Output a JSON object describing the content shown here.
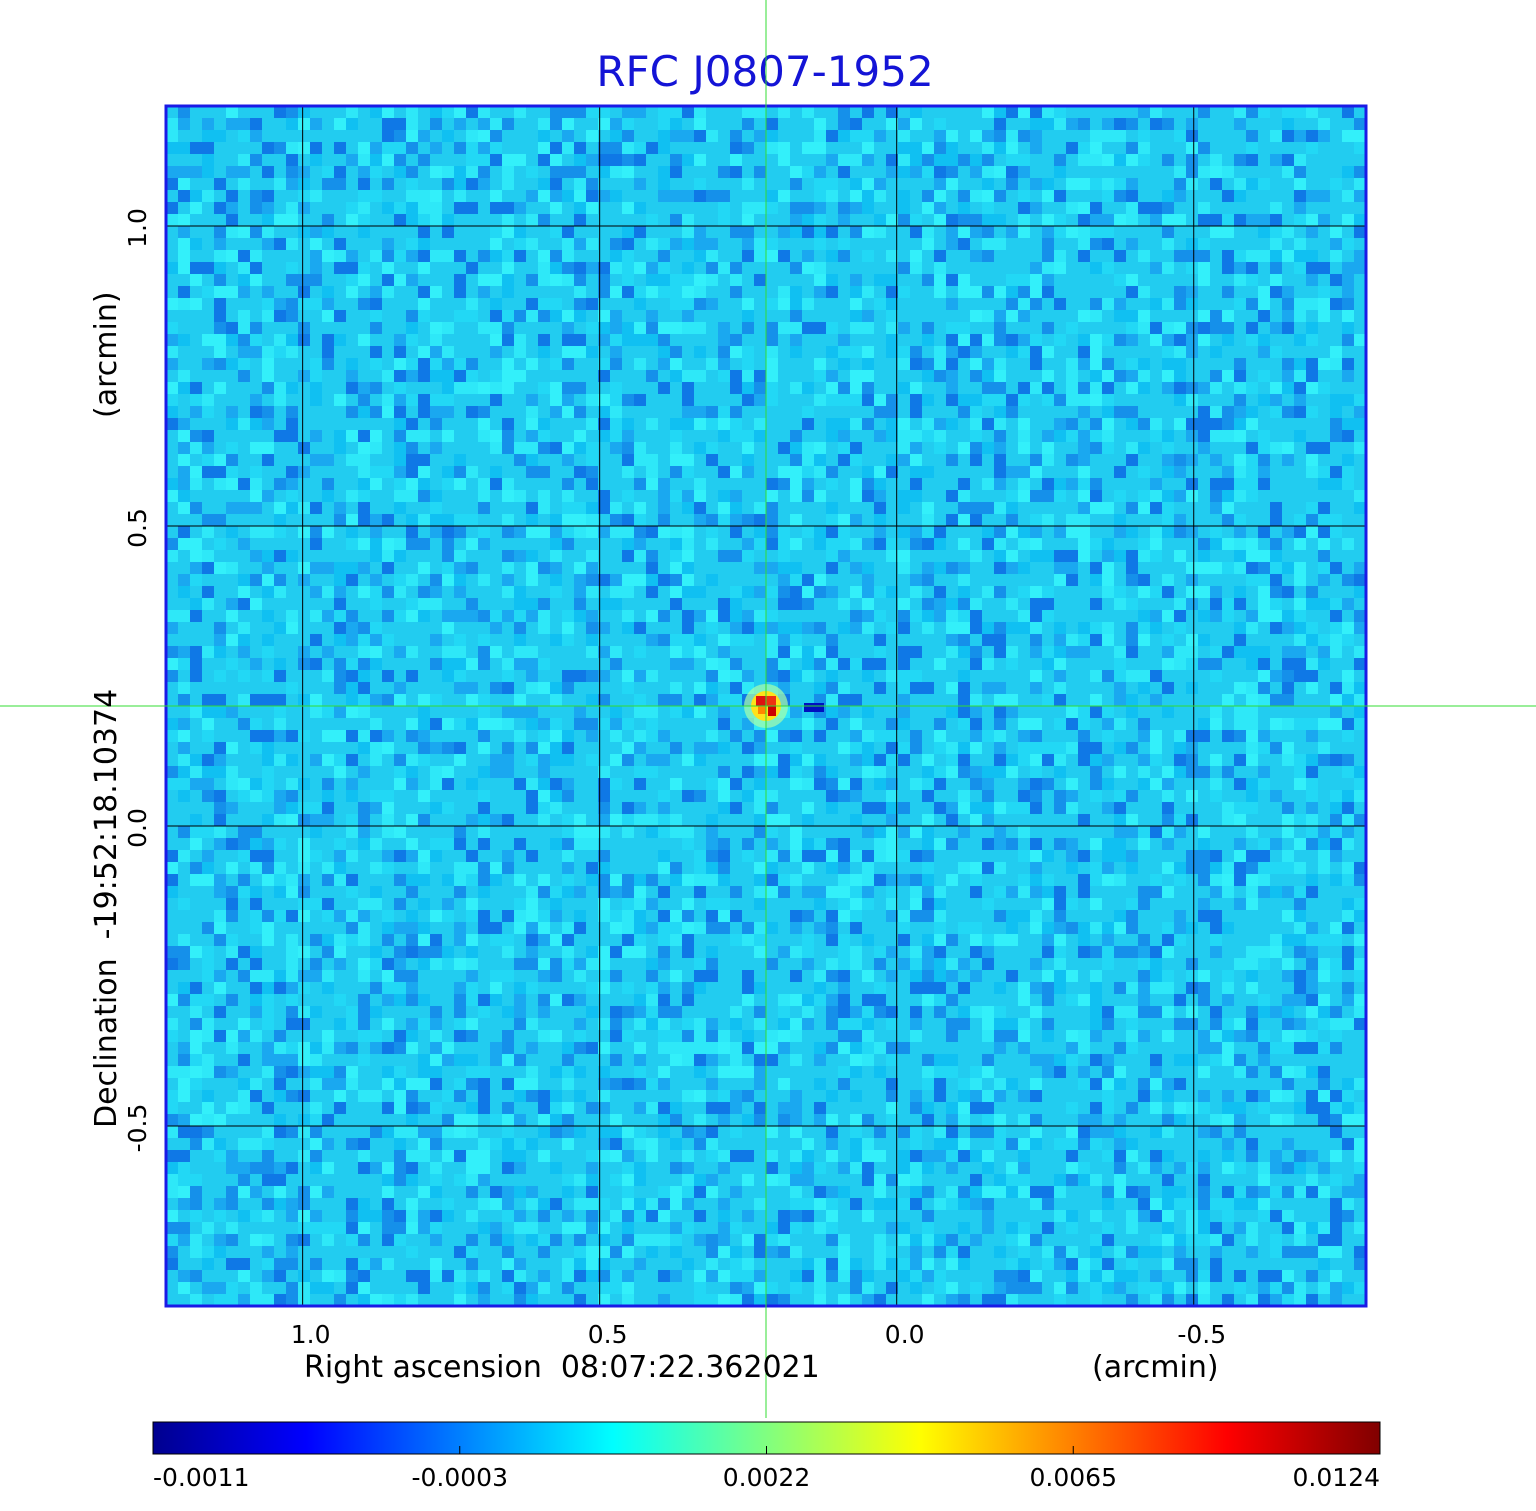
{
  "chart_data": {
    "type": "heatmap",
    "title": "RFC J0807-1952",
    "xlabel": "Right ascension  08:07:22.362021",
    "xunit": "(arcmin)",
    "ylabel": "Declination  -19:52:18.10374",
    "yunit": "(arcmin)",
    "xlim": [
      1.23,
      -0.79
    ],
    "ylim": [
      -0.8,
      1.2
    ],
    "x_ticks": [
      1.0,
      0.5,
      0.0,
      -0.5
    ],
    "x_tick_labels": [
      "1.0",
      "0.5",
      "0.0",
      "-0.5"
    ],
    "y_ticks": [
      1.0,
      0.5,
      0.0,
      -0.5
    ],
    "y_tick_labels": [
      "1.0",
      "0.5",
      "0.0",
      "-0.5"
    ],
    "grid": true,
    "crosshair": {
      "x": 0.22,
      "y": 0.2,
      "color": "#33dd33"
    },
    "source_peak": {
      "x": 0.22,
      "y": 0.2,
      "value": 0.0124
    },
    "colorbar": {
      "colormap": "jet",
      "placement": "bottom",
      "tick_labels": [
        "-0.0011",
        "-0.0003",
        "0.0022",
        "0.0065",
        "0.0124"
      ]
    },
    "colors": {
      "title": "#1414d6",
      "frame": "#1a1ae6",
      "grid": "#000000",
      "crosshair": "#33dd33"
    }
  }
}
